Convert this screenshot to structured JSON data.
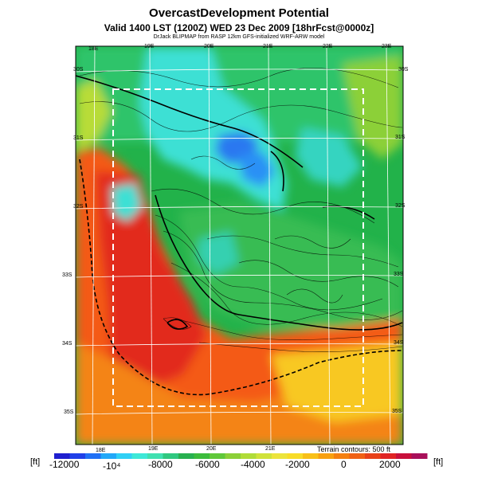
{
  "header": {
    "title": "OvercastDevelopment Potential",
    "subtitle": "Valid 1400 LST (1200Z) WED 23 Dec 2009 [18hrFcst@0000z]",
    "credit": "DrJack BLIPMAP from RASP 12km GFS-initialized WRF-ARW model"
  },
  "map": {
    "lon_top": [
      "18E",
      "19E",
      "20E",
      "21E",
      "22E",
      "23E"
    ],
    "lon_bottom": [
      "18E",
      "19E",
      "20E",
      "21E"
    ],
    "lat_left": [
      "30S",
      "31S",
      "32S",
      "33S",
      "34S",
      "35S"
    ],
    "lat_right": [
      "30S",
      "31S",
      "32S",
      "33S",
      "34S",
      "35S"
    ],
    "terrain_note": "Terrain contours: 500 ft"
  },
  "colorbar": {
    "unit_left": "[ft]",
    "unit_right": "[ft]",
    "labels": [
      "-12000",
      "-10⁴",
      "-8000",
      "-6000",
      "-4000",
      "-2000",
      "0",
      "2000"
    ],
    "colors": [
      "#1f1fcf",
      "#2040e8",
      "#2070f5",
      "#22a8f8",
      "#30d0f5",
      "#3ee8d8",
      "#40e0b0",
      "#30c880",
      "#28b050",
      "#3cbc3c",
      "#60c83a",
      "#8cd038",
      "#b0dc38",
      "#d0e23a",
      "#ece43c",
      "#f8dc28",
      "#f8c018",
      "#f8a010",
      "#f48010",
      "#f06014",
      "#e84018",
      "#e02424",
      "#c8103c",
      "#a8105a"
    ]
  }
}
